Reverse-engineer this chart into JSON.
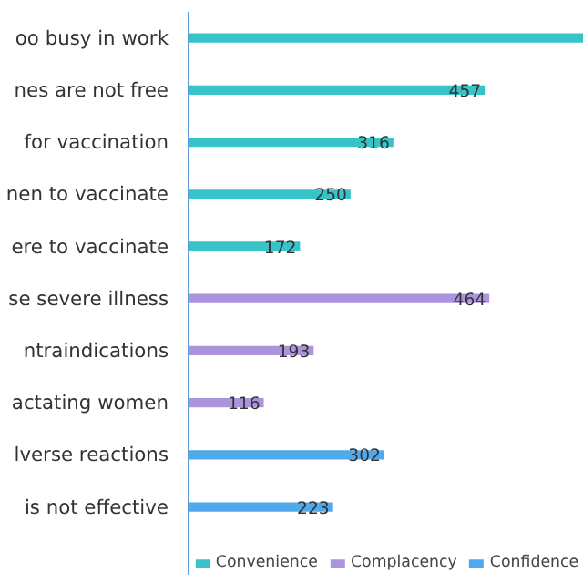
{
  "chart_data": {
    "type": "bar",
    "orientation": "horizontal",
    "categories": [
      "oo busy in work",
      "nes are not free",
      "for vaccination",
      "nen to vaccinate",
      "ere to vaccinate",
      "se severe illness",
      "ntraindications",
      "actating women",
      "lverse reactions",
      "is not effective"
    ],
    "series": [
      {
        "name": "Convenience",
        "color": "#36c4c8",
        "values": [
          610,
          457,
          316,
          250,
          172,
          null,
          null,
          null,
          null,
          null
        ],
        "value_labels": [
          null,
          "457",
          "316",
          "250",
          "172",
          null,
          null,
          null,
          null,
          null
        ]
      },
      {
        "name": "Complacency",
        "color": "#ab94dc",
        "values": [
          null,
          null,
          null,
          null,
          null,
          464,
          193,
          116,
          null,
          null
        ],
        "value_labels": [
          null,
          null,
          null,
          null,
          null,
          "464",
          "193",
          "116",
          null,
          null
        ]
      },
      {
        "name": "Confidence",
        "color": "#4eaaea",
        "values": [
          null,
          null,
          null,
          null,
          null,
          null,
          null,
          null,
          302,
          223
        ],
        "value_labels": [
          null,
          null,
          null,
          null,
          null,
          null,
          null,
          null,
          "302",
          "223"
        ]
      }
    ],
    "xlim": [
      0,
      610
    ],
    "tick_labels": "y",
    "grid": false,
    "legend": "bottom"
  }
}
